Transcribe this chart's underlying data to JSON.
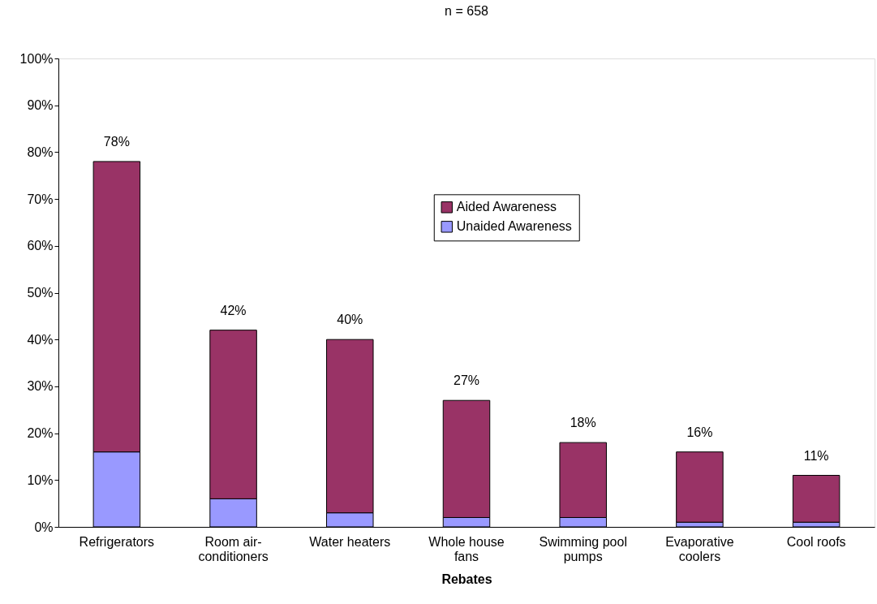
{
  "chart_data": {
    "type": "bar",
    "title": "n = 658",
    "xlabel": "Rebates",
    "categories": [
      "Refrigerators",
      "Room air-conditioners",
      "Water heaters",
      "Whole house fans",
      "Swimming pool pumps",
      "Evaporative coolers",
      "Cool roofs"
    ],
    "series": [
      {
        "name": "Unaided Awareness",
        "color": "#9999ff",
        "values": [
          16,
          6,
          3,
          2,
          2,
          1,
          1
        ]
      },
      {
        "name": "Aided Awareness",
        "color": "#993366",
        "values": [
          62,
          36,
          37,
          25,
          16,
          15,
          10
        ]
      }
    ],
    "stacked": true,
    "totals": [
      "78%",
      "42%",
      "40%",
      "27%",
      "18%",
      "16%",
      "11%"
    ],
    "ylim": [
      0,
      100
    ],
    "yticks": [
      {
        "value": 0,
        "label": "0%"
      },
      {
        "value": 10,
        "label": "10%"
      },
      {
        "value": 20,
        "label": "20%"
      },
      {
        "value": 30,
        "label": "30%"
      },
      {
        "value": 40,
        "label": "40%"
      },
      {
        "value": 50,
        "label": "50%"
      },
      {
        "value": 60,
        "label": "60%"
      },
      {
        "value": 70,
        "label": "70%"
      },
      {
        "value": 80,
        "label": "80%"
      },
      {
        "value": 90,
        "label": "90%"
      },
      {
        "value": 100,
        "label": "100%"
      }
    ],
    "grid": false,
    "legend": "top right"
  }
}
